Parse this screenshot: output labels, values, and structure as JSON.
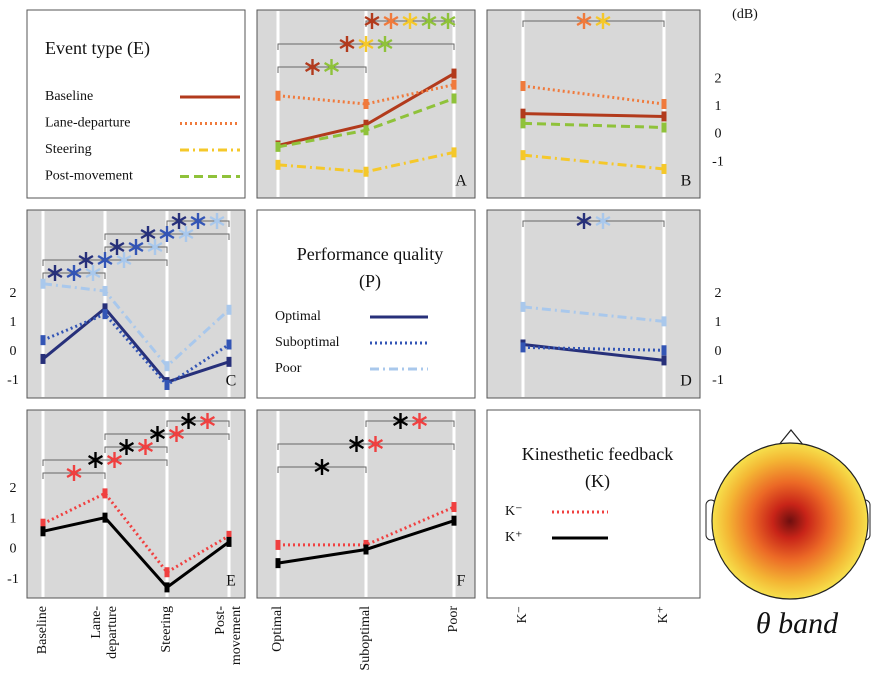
{
  "unit": "(dB)",
  "topomap": {
    "label": "θ band"
  },
  "chart_data": [
    {
      "type": "line",
      "label": "A",
      "legend_title": "Event type (E)",
      "ylim": [
        -2.3,
        4.5
      ],
      "series": [
        {
          "name": "Baseline",
          "color": "#b23a1c",
          "style": "solid",
          "values": [
            -0.4,
            0.35,
            2.2
          ]
        },
        {
          "name": "Lane-departure",
          "color": "#f07a3c",
          "style": "dotted",
          "values": [
            1.4,
            1.1,
            1.8
          ]
        },
        {
          "name": "Steering",
          "color": "#f5c82a",
          "style": "dashdot",
          "values": [
            -1.1,
            -1.35,
            -0.65
          ]
        },
        {
          "name": "Post-movement",
          "color": "#8fc23a",
          "style": "dashed",
          "values": [
            -0.45,
            0.15,
            1.3
          ]
        }
      ],
      "significance": [
        {
          "between": [
            1,
            2
          ],
          "colors": [
            "#b23a1c",
            "#f07a3c",
            "#f5c82a",
            "#8fc23a",
            "#8fc23a"
          ]
        },
        {
          "between": [
            0,
            2
          ],
          "colors": [
            "#b23a1c",
            "#f5c82a",
            "#8fc23a"
          ]
        },
        {
          "between": [
            0,
            1
          ],
          "colors": [
            "#b23a1c",
            "#8fc23a"
          ]
        }
      ]
    },
    {
      "type": "line",
      "label": "B",
      "ylim": [
        -2.3,
        4.5
      ],
      "yticks": [
        2,
        1,
        0,
        -1
      ],
      "series": [
        {
          "color": "#b23a1c",
          "style": "solid",
          "values": [
            0.75,
            0.65
          ]
        },
        {
          "color": "#f07a3c",
          "style": "dotted",
          "values": [
            1.75,
            1.1
          ]
        },
        {
          "color": "#f5c82a",
          "style": "dashdot",
          "values": [
            -0.75,
            -1.25
          ]
        },
        {
          "color": "#8fc23a",
          "style": "dashed",
          "values": [
            0.4,
            0.25
          ]
        }
      ],
      "significance": [
        {
          "between": [
            0,
            1
          ],
          "colors": [
            "#f07a3c",
            "#f5c82a"
          ]
        }
      ]
    },
    {
      "type": "line",
      "label": "C",
      "legend_title": "Performance quality (P)",
      "ylim": [
        -1.6,
        4.9
      ],
      "yticks": [
        2,
        1,
        0,
        -1
      ],
      "series": [
        {
          "name": "Optimal",
          "color": "#27307a",
          "style": "solid",
          "values": [
            -0.25,
            1.5,
            -1.05,
            -0.35
          ]
        },
        {
          "name": "Suboptimal",
          "color": "#3355b5",
          "style": "dotted",
          "values": [
            0.4,
            1.3,
            -1.15,
            0.25
          ]
        },
        {
          "name": "Poor",
          "color": "#a9c8ec",
          "style": "dashdot",
          "values": [
            2.35,
            2.1,
            -0.5,
            1.45
          ]
        }
      ],
      "significance": [
        {
          "between": [
            2,
            3
          ],
          "colors": [
            "#27307a",
            "#3355b5",
            "#a9c8ec"
          ]
        },
        {
          "between": [
            1,
            3
          ],
          "colors": [
            "#27307a",
            "#3355b5",
            "#a9c8ec"
          ]
        },
        {
          "between": [
            1,
            2
          ],
          "colors": [
            "#27307a",
            "#3355b5",
            "#a9c8ec"
          ]
        },
        {
          "between": [
            0,
            2
          ],
          "colors": [
            "#27307a",
            "#3355b5",
            "#a9c8ec"
          ]
        },
        {
          "between": [
            0,
            1
          ],
          "colors": [
            "#27307a",
            "#3355b5",
            "#a9c8ec"
          ]
        }
      ]
    },
    {
      "type": "line",
      "label": "D",
      "categories": [
        "K⁻",
        "K⁺"
      ],
      "ylim": [
        -1.6,
        4.9
      ],
      "yticks": [
        2,
        1,
        0,
        -1
      ],
      "series": [
        {
          "color": "#27307a",
          "style": "solid",
          "values": [
            0.25,
            -0.3
          ]
        },
        {
          "color": "#3355b5",
          "style": "dotted",
          "values": [
            0.15,
            0.05
          ]
        },
        {
          "color": "#a9c8ec",
          "style": "dashdot",
          "values": [
            1.55,
            1.05
          ]
        }
      ],
      "significance": [
        {
          "between": [
            0,
            1
          ],
          "colors": [
            "#27307a",
            "#a9c8ec"
          ]
        }
      ]
    },
    {
      "type": "line",
      "label": "E",
      "legend_title": "Kinesthetic feedback (K)",
      "categories": [
        "Baseline",
        "Lane-departure",
        "Steering",
        "Post-movement"
      ],
      "ylim": [
        -1.6,
        4.6
      ],
      "yticks": [
        2,
        1,
        0,
        -1
      ],
      "series": [
        {
          "name": "K⁻",
          "color": "#f04040",
          "style": "dotted",
          "values": [
            0.85,
            1.85,
            -0.75,
            0.45
          ]
        },
        {
          "name": "K⁺",
          "color": "#000000",
          "style": "solid",
          "values": [
            0.6,
            1.05,
            -1.25,
            0.25
          ]
        }
      ],
      "significance": [
        {
          "between": [
            2,
            3
          ],
          "colors": [
            "#000000",
            "#f04040"
          ]
        },
        {
          "between": [
            1,
            3
          ],
          "colors": [
            "#000000",
            "#f04040"
          ]
        },
        {
          "between": [
            1,
            2
          ],
          "colors": [
            "#000000",
            "#f04040"
          ]
        },
        {
          "between": [
            0,
            2
          ],
          "colors": [
            "#000000",
            "#f04040"
          ]
        },
        {
          "between": [
            0,
            1
          ],
          "colors": [
            "#f04040"
          ]
        }
      ]
    },
    {
      "type": "line",
      "label": "F",
      "categories": [
        "Optimal",
        "Suboptimal",
        "Poor"
      ],
      "ylim": [
        -1.6,
        4.6
      ],
      "series": [
        {
          "color": "#f04040",
          "style": "dotted",
          "values": [
            0.15,
            0.15,
            1.4
          ]
        },
        {
          "color": "#000000",
          "style": "solid",
          "values": [
            -0.45,
            0.0,
            0.95
          ]
        }
      ],
      "significance": [
        {
          "between": [
            1,
            2
          ],
          "colors": [
            "#000000",
            "#f04040"
          ]
        },
        {
          "between": [
            0,
            2
          ],
          "colors": [
            "#000000",
            "#f04040"
          ]
        },
        {
          "between": [
            0,
            1
          ],
          "colors": [
            "#000000"
          ]
        }
      ]
    }
  ]
}
